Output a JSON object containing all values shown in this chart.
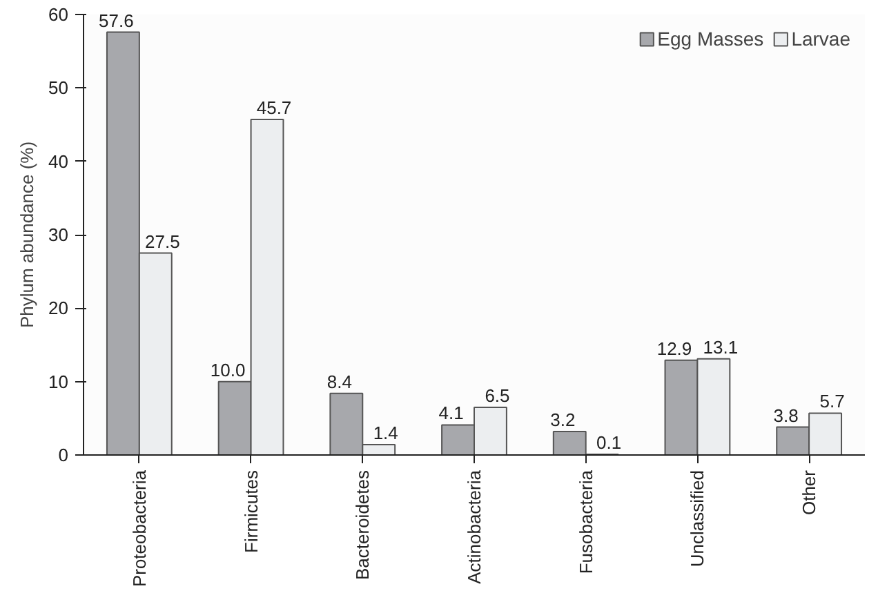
{
  "chart_data": {
    "type": "bar",
    "ylabel": "Phylum abundance (%)",
    "categories": [
      "Proteobacteria",
      "Firmicutes",
      "Bacteroidetes",
      "Actinobacteria",
      "Fusobacteria",
      "Unclassified",
      "Other"
    ],
    "series": [
      {
        "name": "Egg Masses",
        "color": "#a7a8ac",
        "values": [
          57.6,
          10.0,
          8.4,
          4.1,
          3.2,
          12.9,
          3.8
        ],
        "value_labels": [
          "57.6",
          "10.0",
          "8.4",
          "4.1",
          "3.2",
          "12.9",
          "3.8"
        ]
      },
      {
        "name": "Larvae",
        "color": "#eceef0",
        "values": [
          27.5,
          45.7,
          1.4,
          6.5,
          0.1,
          13.1,
          5.7
        ],
        "value_labels": [
          "27.5",
          "45.7",
          "1.4",
          "6.5",
          "0.1",
          "13.1",
          "5.7"
        ]
      }
    ],
    "ylim": [
      0,
      60
    ],
    "yticks": [
      0,
      10,
      20,
      30,
      40,
      50,
      60
    ],
    "grid": false,
    "legend": "top right"
  }
}
